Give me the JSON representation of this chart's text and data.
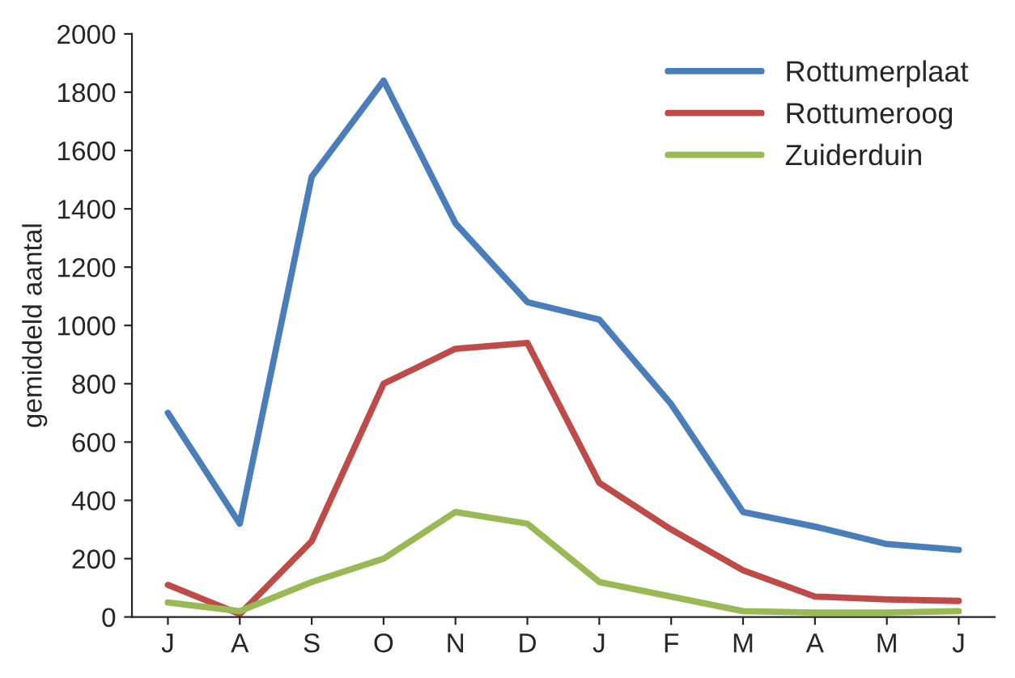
{
  "chart_data": {
    "type": "line",
    "ylabel": "gemiddeld aantal",
    "categories": [
      "J",
      "A",
      "S",
      "O",
      "N",
      "D",
      "J",
      "F",
      "M",
      "A",
      "M",
      "J"
    ],
    "series": [
      {
        "name": "Rottumerplaat",
        "color": "#4a7ebb",
        "values": [
          700,
          320,
          1510,
          1840,
          1350,
          1080,
          1020,
          730,
          360,
          310,
          250,
          230
        ]
      },
      {
        "name": "Rottumeroog",
        "color": "#be4b48",
        "values": [
          110,
          10,
          260,
          800,
          920,
          940,
          460,
          300,
          160,
          70,
          60,
          55
        ]
      },
      {
        "name": "Zuiderduin",
        "color": "#98b954",
        "values": [
          50,
          20,
          120,
          200,
          360,
          320,
          120,
          70,
          20,
          15,
          15,
          20
        ]
      }
    ],
    "ylim": [
      0,
      2000
    ],
    "yticks": [
      0,
      200,
      400,
      600,
      800,
      1000,
      1200,
      1400,
      1600,
      1800,
      2000
    ],
    "grid": false,
    "legend": "top right",
    "marker": "none",
    "line_style": "solid"
  }
}
